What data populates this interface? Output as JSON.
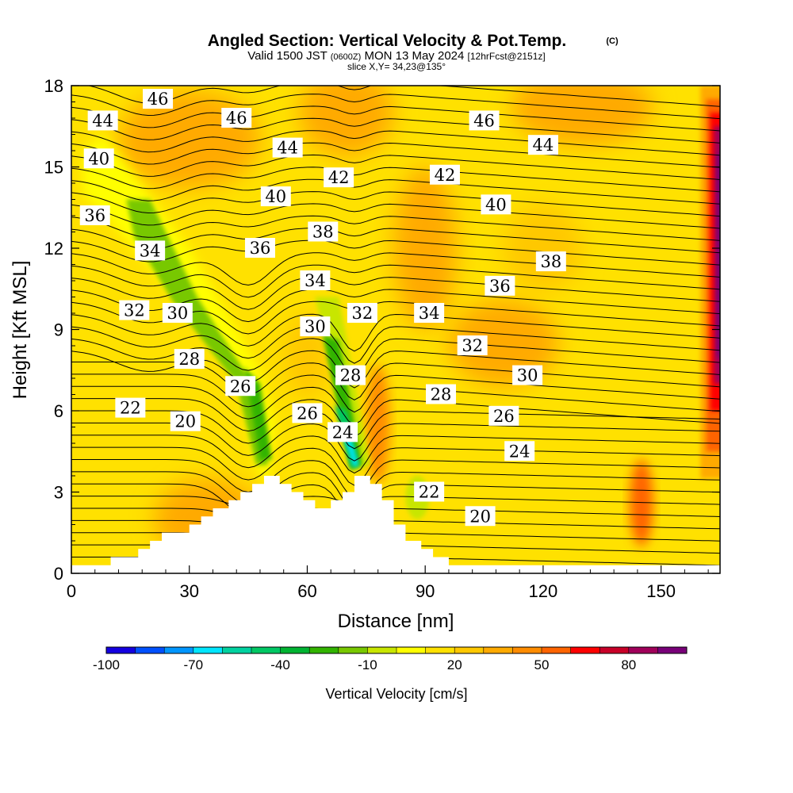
{
  "chart_data": {
    "type": "heatmap",
    "title": "Angled Section: Vertical Velocity & Pot.Temp.",
    "title_unit": "(C)",
    "subtitle_parts": [
      "Valid 1500 JST",
      "(0600Z)",
      "MON 13 May 2024",
      "[12hrFcst@2151z]"
    ],
    "slice_label": "slice X,Y= 34,23@135°",
    "xlabel": "Distance [nm]",
    "ylabel": "Height [Kft MSL]",
    "xlim": [
      0,
      165
    ],
    "ylim": [
      0,
      18
    ],
    "x_ticks": [
      0,
      30,
      60,
      90,
      120,
      150
    ],
    "y_ticks": [
      0,
      3,
      6,
      9,
      12,
      15,
      18
    ],
    "grid": false,
    "colorbar": {
      "title": "Vertical Velocity [cm/s]",
      "labels": [
        -100,
        -70,
        -40,
        -10,
        20,
        50,
        80
      ],
      "colors": [
        "#1400e0",
        "#0050ff",
        "#0096ff",
        "#00e6ff",
        "#00d2a0",
        "#00c864",
        "#00b432",
        "#32b400",
        "#78c800",
        "#c8e600",
        "#ffff00",
        "#ffe100",
        "#ffc800",
        "#ffaa00",
        "#ff8c00",
        "#ff6400",
        "#ff0000",
        "#c80028",
        "#a0005a",
        "#780078"
      ]
    },
    "terrain_profile": [
      [
        0,
        0.3
      ],
      [
        10,
        0.3
      ],
      [
        10,
        0.6
      ],
      [
        17,
        0.6
      ],
      [
        17,
        0.9
      ],
      [
        20,
        0.9
      ],
      [
        20,
        1.2
      ],
      [
        23,
        1.2
      ],
      [
        23,
        1.5
      ],
      [
        30,
        1.5
      ],
      [
        30,
        1.8
      ],
      [
        33,
        1.8
      ],
      [
        33,
        2.1
      ],
      [
        36,
        2.1
      ],
      [
        36,
        2.4
      ],
      [
        40,
        2.4
      ],
      [
        40,
        2.7
      ],
      [
        43,
        2.7
      ],
      [
        43,
        3.0
      ],
      [
        46,
        3.0
      ],
      [
        46,
        3.3
      ],
      [
        49,
        3.3
      ],
      [
        49,
        3.6
      ],
      [
        53,
        3.6
      ],
      [
        53,
        3.3
      ],
      [
        56,
        3.3
      ],
      [
        56,
        3.0
      ],
      [
        59,
        3.0
      ],
      [
        59,
        2.7
      ],
      [
        62,
        2.7
      ],
      [
        62,
        2.4
      ],
      [
        66,
        2.4
      ],
      [
        66,
        2.7
      ],
      [
        69,
        2.7
      ],
      [
        69,
        3.0
      ],
      [
        72,
        3.0
      ],
      [
        72,
        3.6
      ],
      [
        76,
        3.6
      ],
      [
        76,
        3.3
      ],
      [
        79,
        3.3
      ],
      [
        79,
        2.7
      ],
      [
        82,
        2.7
      ],
      [
        82,
        1.8
      ],
      [
        85,
        1.8
      ],
      [
        85,
        1.2
      ],
      [
        89,
        1.2
      ],
      [
        89,
        0.9
      ],
      [
        92,
        0.9
      ],
      [
        92,
        0.6
      ],
      [
        96,
        0.6
      ],
      [
        96,
        0.3
      ],
      [
        165,
        0.3
      ]
    ],
    "velocity_features": [
      {
        "kind": "downdraft",
        "x": [
          3,
          48
        ],
        "y": [
          15.0,
          5.0
        ],
        "value": -30
      },
      {
        "kind": "downdraft",
        "x": [
          64,
          74
        ],
        "y": [
          10.0,
          4.0
        ],
        "value": -60
      },
      {
        "kind": "updraft",
        "x": [
          158,
          165
        ],
        "y": [
          4,
          18
        ],
        "value": 70
      },
      {
        "kind": "updraft",
        "x": [
          140,
          148
        ],
        "y": [
          1,
          4
        ],
        "value": 30
      },
      {
        "kind": "updraft",
        "x": [
          85,
          110
        ],
        "y": [
          7,
          13
        ],
        "value": 15
      }
    ],
    "theta_labels": [
      {
        "x": 8,
        "y": 16.7,
        "text": "44"
      },
      {
        "x": 22,
        "y": 17.5,
        "text": "46"
      },
      {
        "x": 42,
        "y": 16.8,
        "text": "46"
      },
      {
        "x": 105,
        "y": 16.7,
        "text": "46"
      },
      {
        "x": 55,
        "y": 15.7,
        "text": "44"
      },
      {
        "x": 120,
        "y": 15.8,
        "text": "44"
      },
      {
        "x": 7,
        "y": 15.3,
        "text": "40"
      },
      {
        "x": 68,
        "y": 14.6,
        "text": "42"
      },
      {
        "x": 95,
        "y": 14.7,
        "text": "42"
      },
      {
        "x": 52,
        "y": 13.9,
        "text": "40"
      },
      {
        "x": 108,
        "y": 13.6,
        "text": "40"
      },
      {
        "x": 6,
        "y": 13.2,
        "text": "36"
      },
      {
        "x": 64,
        "y": 12.6,
        "text": "38"
      },
      {
        "x": 20,
        "y": 11.9,
        "text": "34"
      },
      {
        "x": 48,
        "y": 12.0,
        "text": "36"
      },
      {
        "x": 122,
        "y": 11.5,
        "text": "38"
      },
      {
        "x": 62,
        "y": 10.8,
        "text": "34"
      },
      {
        "x": 109,
        "y": 10.6,
        "text": "36"
      },
      {
        "x": 16,
        "y": 9.7,
        "text": "32"
      },
      {
        "x": 27,
        "y": 9.6,
        "text": "30"
      },
      {
        "x": 74,
        "y": 9.6,
        "text": "32"
      },
      {
        "x": 91,
        "y": 9.6,
        "text": "34"
      },
      {
        "x": 62,
        "y": 9.1,
        "text": "30"
      },
      {
        "x": 102,
        "y": 8.4,
        "text": "32"
      },
      {
        "x": 30,
        "y": 7.9,
        "text": "28"
      },
      {
        "x": 71,
        "y": 7.3,
        "text": "28"
      },
      {
        "x": 116,
        "y": 7.3,
        "text": "30"
      },
      {
        "x": 43,
        "y": 6.9,
        "text": "26"
      },
      {
        "x": 94,
        "y": 6.6,
        "text": "28"
      },
      {
        "x": 15,
        "y": 6.1,
        "text": "22"
      },
      {
        "x": 60,
        "y": 5.9,
        "text": "26"
      },
      {
        "x": 110,
        "y": 5.8,
        "text": "26"
      },
      {
        "x": 29,
        "y": 5.6,
        "text": "20"
      },
      {
        "x": 69,
        "y": 5.2,
        "text": "24"
      },
      {
        "x": 114,
        "y": 4.5,
        "text": "24"
      },
      {
        "x": 91,
        "y": 3.0,
        "text": "22"
      },
      {
        "x": 104,
        "y": 2.1,
        "text": "20"
      }
    ]
  }
}
